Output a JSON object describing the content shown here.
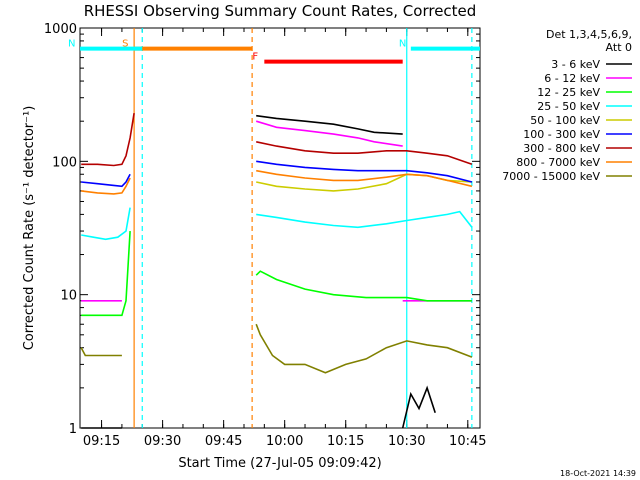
{
  "chart_data": {
    "type": "line",
    "title": "RHESSI Observing Summary Count Rates, Corrected",
    "xlabel": "Start Time (27-Jul-05 09:09:42)",
    "ylabel": "Corrected Count Rate (s⁻¹ detector⁻¹)",
    "yscale": "log",
    "ylim": [
      1,
      1000
    ],
    "xlim": [
      "09:09:42",
      "10:48"
    ],
    "ytick_labels": [
      "1",
      "10",
      "100",
      "1000"
    ],
    "xtick_labels": [
      "09:15",
      "09:30",
      "09:45",
      "10:00",
      "10:15",
      "10:30",
      "10:45"
    ],
    "legend_placement": "top-right outside",
    "legend_title": [
      "Det 1,3,4,5,6,9,",
      "Att 0"
    ],
    "footer": "18-Oct-2021 14:39",
    "annotations": [
      {
        "label": "S",
        "color": "#ff8000",
        "bar": [
          "09:23",
          "09:52"
        ],
        "y": 700
      },
      {
        "label": "N",
        "color": "#00ffff",
        "bar": [
          "09:09:42",
          "09:25"
        ],
        "y": 700
      },
      {
        "label": "N",
        "color": "#00ffff",
        "bar": [
          "10:31",
          "10:48"
        ],
        "y": 700
      },
      {
        "label": "F",
        "color": "#ff0000",
        "bar": [
          "09:55",
          "10:29"
        ],
        "y": 560
      }
    ],
    "vertical_markers": [
      {
        "time": "09:23",
        "color": "#ff8000",
        "style": "solid"
      },
      {
        "time": "09:25",
        "color": "#00ffff",
        "style": "dashed"
      },
      {
        "time": "09:52",
        "color": "#ff8000",
        "style": "dashed"
      },
      {
        "time": "10:30",
        "color": "#00ffff",
        "style": "solid"
      },
      {
        "time": "10:46",
        "color": "#00ffff",
        "style": "dashed"
      }
    ],
    "series": [
      {
        "name": "3 - 6 keV",
        "color": "#000000",
        "segments": [
          {
            "x": [
              "09:10",
              "09:13",
              "09:16",
              "09:19",
              "09:20"
            ],
            "y": [
              1,
              1,
              1,
              1,
              1
            ]
          },
          {
            "x": [
              "10:29",
              "10:31",
              "10:33",
              "10:35",
              "10:37"
            ],
            "y": [
              1,
              1.8,
              1.4,
              2,
              1.3
            ]
          },
          {
            "x": [
              "09:53",
              "09:58",
              "10:05",
              "10:12",
              "10:18",
              "10:22",
              "10:29"
            ],
            "y": [
              220,
              210,
              200,
              190,
              175,
              165,
              160
            ]
          }
        ]
      },
      {
        "name": "6 - 12 keV",
        "color": "#ff00ff",
        "segments": [
          {
            "x": [
              "09:10",
              "09:14",
              "09:17",
              "09:19",
              "09:20"
            ],
            "y": [
              9,
              9,
              9,
              9,
              9
            ]
          },
          {
            "x": [
              "10:29",
              "10:33",
              "10:38",
              "10:42",
              "10:46"
            ],
            "y": [
              9,
              9,
              9,
              9,
              9
            ]
          },
          {
            "x": [
              "09:53",
              "09:58",
              "10:05",
              "10:12",
              "10:18",
              "10:22",
              "10:29"
            ],
            "y": [
              200,
              180,
              170,
              160,
              150,
              140,
              130
            ]
          }
        ]
      },
      {
        "name": "12 - 25 keV",
        "color": "#00ff00",
        "segments": [
          {
            "x": [
              "09:10",
              "09:15",
              "09:18",
              "09:20",
              "09:21",
              "09:22"
            ],
            "y": [
              7,
              7,
              7,
              7,
              9,
              30
            ]
          },
          {
            "x": [
              "09:53",
              "09:54",
              "09:58",
              "10:05",
              "10:12",
              "10:20",
              "10:25",
              "10:30",
              "10:35",
              "10:40",
              "10:46"
            ],
            "y": [
              14,
              15,
              13,
              11,
              10,
              9.5,
              9.5,
              9.5,
              9,
              9,
              9
            ]
          }
        ]
      },
      {
        "name": "25 - 50 keV",
        "color": "#00ffff",
        "segments": [
          {
            "x": [
              "09:10",
              "09:13",
              "09:16",
              "09:19",
              "09:21",
              "09:22"
            ],
            "y": [
              28,
              27,
              26,
              27,
              30,
              45
            ]
          },
          {
            "x": [
              "09:53",
              "09:58",
              "10:05",
              "10:12",
              "10:18",
              "10:25",
              "10:30",
              "10:35",
              "10:40",
              "10:43",
              "10:46"
            ],
            "y": [
              40,
              38,
              35,
              33,
              32,
              34,
              36,
              38,
              40,
              42,
              32
            ]
          }
        ]
      },
      {
        "name": "50 - 100 keV",
        "color": "#cccc00",
        "segments": [
          {
            "x": [
              "09:53",
              "09:58",
              "10:05",
              "10:12",
              "10:18",
              "10:25",
              "10:30",
              "10:35",
              "10:40",
              "10:46"
            ],
            "y": [
              70,
              65,
              62,
              60,
              62,
              68,
              80,
              78,
              72,
              70
            ]
          }
        ]
      },
      {
        "name": "100 - 300 keV",
        "color": "#0000ff",
        "segments": [
          {
            "x": [
              "09:10",
              "09:14",
              "09:18",
              "09:20",
              "09:21",
              "09:22"
            ],
            "y": [
              70,
              68,
              66,
              65,
              70,
              80
            ]
          },
          {
            "x": [
              "09:53",
              "09:58",
              "10:05",
              "10:12",
              "10:18",
              "10:25",
              "10:30",
              "10:35",
              "10:40",
              "10:46"
            ],
            "y": [
              100,
              95,
              90,
              87,
              85,
              85,
              85,
              82,
              78,
              70
            ]
          }
        ]
      },
      {
        "name": "300 - 800 keV",
        "color": "#b40000",
        "segments": [
          {
            "x": [
              "09:10",
              "09:14",
              "09:18",
              "09:20",
              "09:21",
              "09:22",
              "09:23"
            ],
            "y": [
              95,
              95,
              93,
              95,
              110,
              150,
              230
            ]
          },
          {
            "x": [
              "09:53",
              "09:58",
              "10:05",
              "10:12",
              "10:18",
              "10:25",
              "10:30",
              "10:35",
              "10:40",
              "10:46"
            ],
            "y": [
              140,
              130,
              120,
              115,
              115,
              120,
              120,
              115,
              110,
              95
            ]
          }
        ]
      },
      {
        "name": "800 - 7000 keV",
        "color": "#ff8000",
        "segments": [
          {
            "x": [
              "09:10",
              "09:14",
              "09:18",
              "09:20",
              "09:21",
              "09:22"
            ],
            "y": [
              60,
              58,
              57,
              58,
              65,
              75
            ]
          },
          {
            "x": [
              "09:53",
              "09:58",
              "10:05",
              "10:12",
              "10:18",
              "10:25",
              "10:30",
              "10:35",
              "10:40",
              "10:46"
            ],
            "y": [
              85,
              80,
              75,
              72,
              72,
              76,
              80,
              78,
              72,
              65
            ]
          }
        ]
      },
      {
        "name": "7000 - 15000 keV",
        "color": "#808000",
        "segments": [
          {
            "x": [
              "09:10",
              "09:11",
              "09:14",
              "09:18",
              "09:20"
            ],
            "y": [
              4,
              3.5,
              3.5,
              3.5,
              3.5
            ]
          },
          {
            "x": [
              "09:53",
              "09:54",
              "09:57",
              "10:00",
              "10:05",
              "10:10",
              "10:15",
              "10:20",
              "10:25",
              "10:30",
              "10:35",
              "10:40",
              "10:46"
            ],
            "y": [
              6,
              5,
              3.5,
              3.0,
              3.0,
              2.6,
              3.0,
              3.3,
              4.0,
              4.5,
              4.2,
              4.0,
              3.4
            ]
          }
        ]
      }
    ]
  }
}
